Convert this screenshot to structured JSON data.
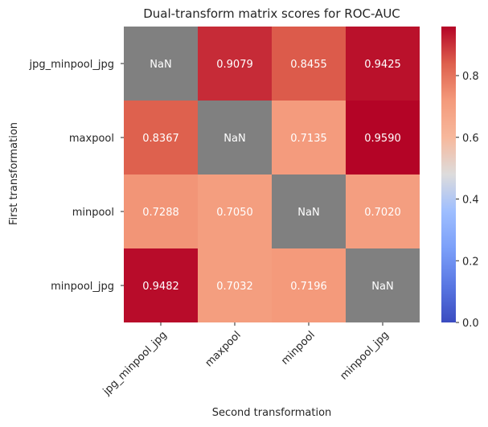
{
  "chart_data": {
    "type": "heatmap",
    "title": "Dual-transform matrix scores for ROC-AUC",
    "xlabel": "Second transformation",
    "ylabel": "First transformation",
    "rows": [
      "jpg_minpool_jpg",
      "maxpool",
      "minpool",
      "minpool_jpg"
    ],
    "cols": [
      "jpg_minpool_jpg",
      "maxpool",
      "minpool",
      "minpool_jpg"
    ],
    "values": [
      [
        null,
        0.9079,
        0.8455,
        0.9425
      ],
      [
        0.8367,
        null,
        0.7135,
        0.959
      ],
      [
        0.7288,
        0.705,
        null,
        0.702
      ],
      [
        0.9482,
        0.7032,
        0.7196,
        null
      ]
    ],
    "cell_labels": [
      [
        "NaN",
        "0.9079",
        "0.8455",
        "0.9425"
      ],
      [
        "0.8367",
        "NaN",
        "0.7135",
        "0.9590"
      ],
      [
        "0.7288",
        "0.7050",
        "NaN",
        "0.7020"
      ],
      [
        "0.9482",
        "0.7032",
        "0.7196",
        "NaN"
      ]
    ],
    "colormap": "coolwarm",
    "nan_color": "#808080",
    "vmin": 0.0,
    "vmax": 0.959,
    "colorbar_ticks": [
      0.0,
      0.2,
      0.4,
      0.6,
      0.8
    ],
    "colorbar_tick_labels": [
      "0.0",
      "0.2",
      "0.4",
      "0.6",
      "0.8"
    ],
    "grid": false
  }
}
